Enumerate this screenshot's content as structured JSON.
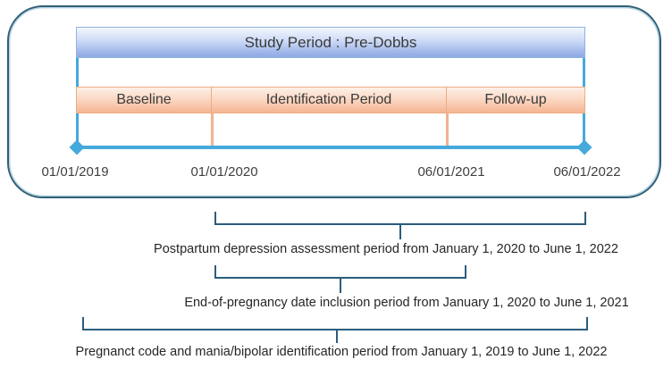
{
  "diagram": {
    "title": "Study Period : Pre-Dobbs",
    "phases": [
      {
        "label": "Baseline"
      },
      {
        "label": "Identification Period"
      },
      {
        "label": "Follow-up"
      }
    ],
    "timeline_dates": [
      "01/01/2019",
      "01/01/2020",
      "06/01/2021",
      "06/01/2022"
    ],
    "annotations": [
      {
        "label": "Postpartum depression assessment period from January 1, 2020 to June 1, 2022"
      },
      {
        "label": "End-of-pregnancy date inclusion period from January 1, 2020 to June 1, 2021"
      },
      {
        "label": "Pregnanct code and mania/bipolar identification period from January 1, 2019 to June 1, 2022"
      }
    ],
    "colors": {
      "outer_border": "#2f5f78",
      "timeline_blue": "#45a9dc",
      "header_gradient_top": "#f3f7fe",
      "header_gradient_bottom": "#8fa9e2",
      "phase_gradient_top": "#fdf0e7",
      "phase_gradient_bottom": "#f5b795",
      "phase_border": "#eeab84",
      "dropline_orange": "#f2b391",
      "bracket": "#2b5d7c",
      "text": "#3a3a3a"
    }
  }
}
